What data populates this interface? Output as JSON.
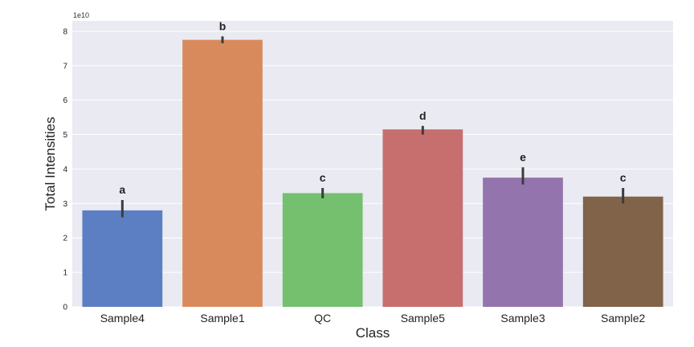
{
  "chart_data": {
    "type": "bar",
    "categories": [
      "Sample4",
      "Sample1",
      "QC",
      "Sample5",
      "Sample3",
      "Sample2"
    ],
    "values": [
      28000000000,
      77500000000,
      33000000000,
      51500000000,
      37500000000,
      32000000000
    ],
    "error_low": [
      26000000000,
      76500000000,
      31500000000,
      50000000000,
      35500000000,
      30000000000
    ],
    "error_high": [
      31000000000,
      78500000000,
      34500000000,
      52500000000,
      40500000000,
      34500000000
    ],
    "annotations": [
      "a",
      "b",
      "c",
      "d",
      "e",
      "c"
    ],
    "colors": [
      "#5b7fc2",
      "#d98a5c",
      "#74c06f",
      "#c76e6e",
      "#9474ad",
      "#81634a"
    ],
    "xlabel": "Class",
    "ylabel": "Total Intensities",
    "ylim": [
      0,
      83000000000
    ],
    "yticks": [
      0,
      1,
      2,
      3,
      4,
      5,
      6,
      7,
      8
    ],
    "ytick_labels": [
      "0",
      "1",
      "2",
      "3",
      "4",
      "5",
      "6",
      "7",
      "8"
    ],
    "offset_label": "1e10",
    "grid": true,
    "background": "#eaeaf2",
    "errorbar_color": "#3c3c3c"
  }
}
